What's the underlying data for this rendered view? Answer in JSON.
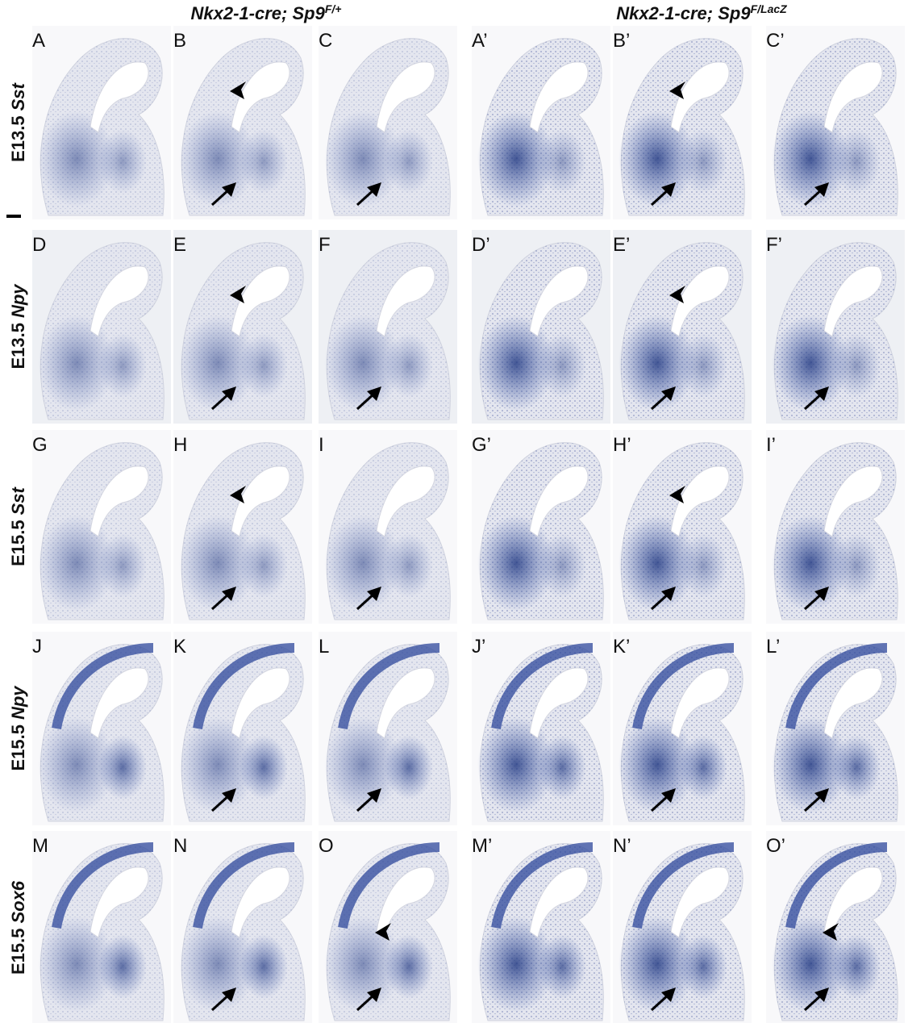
{
  "header": {
    "columns": [
      {
        "genotype": "Nkx2-1-cre; Sp9",
        "allele": "F/+"
      },
      {
        "genotype": "Nkx2-1-cre; Sp9",
        "allele": "F/LacZ"
      }
    ]
  },
  "rows": [
    {
      "stage": "E13.5",
      "gene": "Sst",
      "panels": [
        "A",
        "B",
        "C",
        "A’",
        "B’",
        "C’"
      ]
    },
    {
      "stage": "E13.5",
      "gene": "Npy",
      "panels": [
        "D",
        "E",
        "F",
        "D’",
        "E’",
        "F’"
      ]
    },
    {
      "stage": "E15.5",
      "gene": "Sst",
      "panels": [
        "G",
        "H",
        "I",
        "G’",
        "H’",
        "I’"
      ]
    },
    {
      "stage": "E15.5",
      "gene": "Npy",
      "panels": [
        "J",
        "K",
        "L",
        "J’",
        "K’",
        "L’"
      ]
    },
    {
      "stage": "E15.5",
      "gene": "Sox6",
      "panels": [
        "M",
        "N",
        "O",
        "M’",
        "N’",
        "O’"
      ]
    }
  ]
}
